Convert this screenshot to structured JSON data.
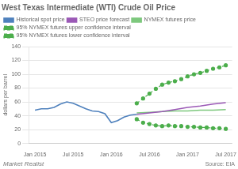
{
  "chart_data": {
    "type": "line",
    "title": "West Texas Intermediate (WTI) Crude Oil Price",
    "ylabel": "dollars per barrel",
    "annotations": [
      "Market Realist",
      "Source: EIA"
    ],
    "xlim": [
      -1,
      31
    ],
    "xticks": [
      {
        "value": 0,
        "label": "Jan 2015"
      },
      {
        "value": 6,
        "label": "Jul 2015"
      },
      {
        "value": 12,
        "label": "Jan 2016"
      },
      {
        "value": 18,
        "label": "Jul 2016"
      },
      {
        "value": 24,
        "label": "Jan 2017"
      },
      {
        "value": 30,
        "label": "Jul 2017"
      }
    ],
    "ylim": [
      0,
      140
    ],
    "yticks": [
      0,
      20,
      40,
      60,
      80,
      100,
      120,
      140
    ],
    "grid": "y",
    "legend": "upper left",
    "series": [
      {
        "name": "Historical spot price",
        "color": "#4f81bd",
        "line_style": "solid",
        "marker": "none",
        "x": [
          0,
          1,
          2,
          3,
          4,
          5,
          6,
          7,
          8,
          9,
          10,
          11,
          12,
          13,
          14,
          15,
          16
        ],
        "values": [
          48,
          50,
          50,
          52,
          57,
          60,
          58,
          54,
          50,
          47,
          46,
          43,
          30,
          33,
          38,
          41,
          42
        ]
      },
      {
        "name": "STEO price forecast",
        "color": "#9b59b6",
        "line_style": "solid",
        "marker": "none",
        "x": [
          16,
          18,
          20,
          22,
          24,
          26,
          28,
          30
        ],
        "values": [
          42,
          44,
          46,
          49,
          52,
          54,
          57,
          59
        ]
      },
      {
        "name": "NYMEX futures price",
        "color": "#7dc87d",
        "line_style": "solid",
        "marker": "none",
        "x": [
          16,
          18,
          20,
          22,
          24,
          26,
          28,
          30
        ],
        "values": [
          44,
          45,
          46,
          47,
          47,
          48,
          48,
          49
        ]
      },
      {
        "name": "95% NYMEX futures upper confidence interval",
        "color": "#4cae4c",
        "line_style": "dashed",
        "marker": "circle",
        "x": [
          16,
          17,
          18,
          19,
          20,
          21,
          22,
          23,
          24,
          25,
          26,
          27,
          28,
          29,
          30
        ],
        "values": [
          58,
          65,
          72,
          79,
          85,
          88,
          90,
          93,
          97,
          100,
          102,
          105,
          108,
          110,
          113
        ]
      },
      {
        "name": "95% NYMEX futures lower confidence interval",
        "color": "#4cae4c",
        "line_style": "dashed",
        "marker": "circle",
        "x": [
          16,
          17,
          18,
          19,
          20,
          21,
          22,
          23,
          24,
          25,
          26,
          27,
          28,
          29,
          30
        ],
        "values": [
          35,
          30,
          28,
          26,
          25,
          26,
          25,
          25,
          24,
          24,
          23,
          23,
          22,
          22,
          21
        ]
      }
    ]
  }
}
